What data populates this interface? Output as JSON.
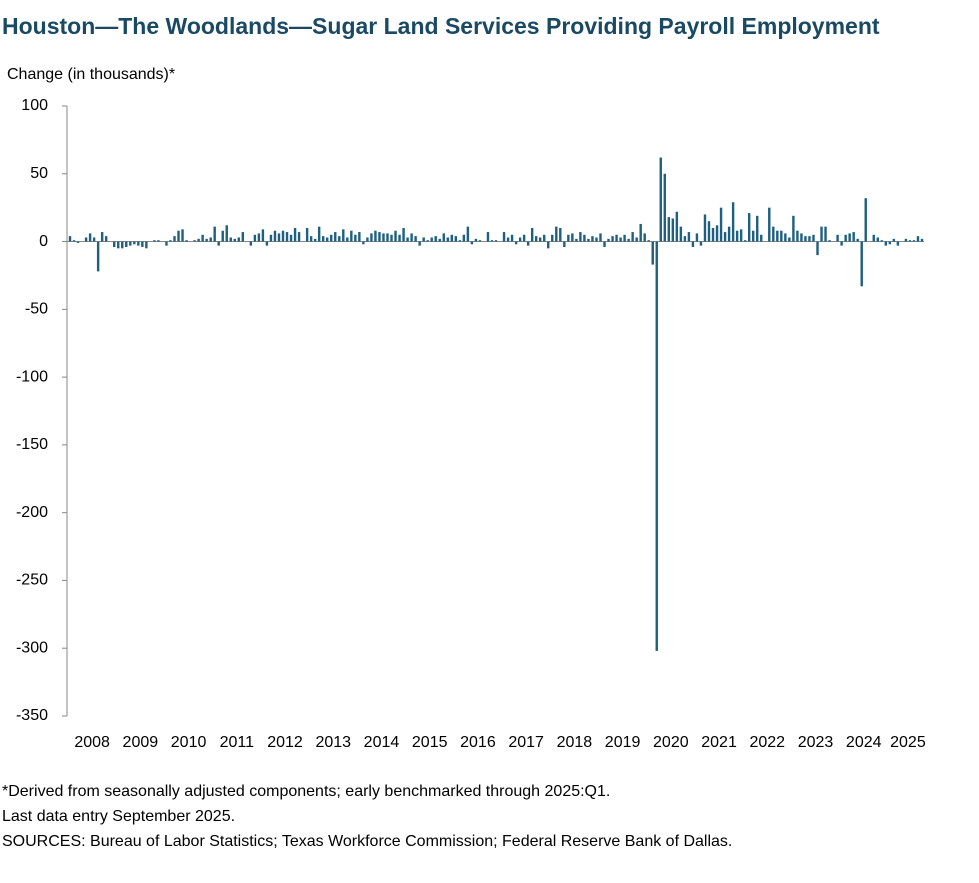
{
  "chart_data": {
    "type": "bar",
    "title": "Houston—The Woodlands—Sugar Land Services Providing Payroll Employment",
    "y_label": "Change (in thousands)*",
    "notes": [
      "*Derived from seasonally adjusted components; early benchmarked through 2025:Q1.",
      "Last data entry September 2025.",
      "SOURCES: Bureau of Labor Statistics; Texas Workforce Commission; Federal Reserve Bank of Dallas."
    ],
    "color": "#1f5f7f",
    "ylim": [
      -350,
      100
    ],
    "yticks": [
      -350,
      -300,
      -250,
      -200,
      -150,
      -100,
      -50,
      0,
      50,
      100
    ],
    "categories": [
      null,
      null,
      null,
      null,
      null,
      null,
      "2008",
      null,
      null,
      null,
      null,
      null,
      null,
      null,
      null,
      null,
      null,
      null,
      "2009",
      null,
      null,
      null,
      null,
      null,
      null,
      null,
      null,
      null,
      null,
      null,
      "2010",
      null,
      null,
      null,
      null,
      null,
      null,
      null,
      null,
      null,
      null,
      null,
      "2011",
      null,
      null,
      null,
      null,
      null,
      null,
      null,
      null,
      null,
      null,
      null,
      "2012",
      null,
      null,
      null,
      null,
      null,
      null,
      null,
      null,
      null,
      null,
      null,
      "2013",
      null,
      null,
      null,
      null,
      null,
      null,
      null,
      null,
      null,
      null,
      null,
      "2014",
      null,
      null,
      null,
      null,
      null,
      null,
      null,
      null,
      null,
      null,
      null,
      "2015",
      null,
      null,
      null,
      null,
      null,
      null,
      null,
      null,
      null,
      null,
      null,
      "2016",
      null,
      null,
      null,
      null,
      null,
      null,
      null,
      null,
      null,
      null,
      null,
      "2017",
      null,
      null,
      null,
      null,
      null,
      null,
      null,
      null,
      null,
      null,
      null,
      "2018",
      null,
      null,
      null,
      null,
      null,
      null,
      null,
      null,
      null,
      null,
      null,
      "2019",
      null,
      null,
      null,
      null,
      null,
      null,
      null,
      null,
      null,
      null,
      null,
      "2020",
      null,
      null,
      null,
      null,
      null,
      null,
      null,
      null,
      null,
      null,
      null,
      "2021",
      null,
      null,
      null,
      null,
      null,
      null,
      null,
      null,
      null,
      null,
      null,
      "2022",
      null,
      null,
      null,
      null,
      null,
      null,
      null,
      null,
      null,
      null,
      null,
      "2023",
      null,
      null,
      null,
      null,
      null,
      null,
      null,
      null,
      null,
      null,
      null,
      "2024",
      null,
      null,
      null,
      null,
      null,
      null,
      null,
      null,
      null,
      null,
      "2025",
      null,
      null,
      null
    ],
    "values": [
      4,
      1,
      -1,
      0,
      3,
      6,
      3,
      -22,
      7,
      4,
      0,
      -4,
      -5,
      -5,
      -4,
      -3,
      -2,
      -3,
      -4,
      -5,
      0,
      1,
      1,
      0,
      -3,
      1,
      4,
      8,
      9,
      1,
      0,
      1,
      2,
      5,
      2,
      3,
      11,
      -3,
      8,
      12,
      3,
      2,
      3,
      7,
      0,
      -3,
      5,
      6,
      9,
      -3,
      5,
      8,
      6,
      8,
      7,
      5,
      10,
      7,
      0,
      10,
      4,
      2,
      11,
      4,
      3,
      5,
      7,
      4,
      9,
      3,
      8,
      5,
      7,
      -2,
      3,
      6,
      8,
      7,
      6,
      6,
      5,
      8,
      5,
      10,
      3,
      6,
      4,
      -3,
      3,
      1,
      3,
      4,
      2,
      6,
      3,
      5,
      4,
      1,
      5,
      11,
      -2,
      2,
      1,
      0,
      7,
      1,
      1,
      0,
      7,
      3,
      5,
      -2,
      3,
      5,
      -3,
      10,
      4,
      3,
      5,
      -5,
      5,
      11,
      10,
      -4,
      5,
      6,
      2,
      7,
      5,
      2,
      4,
      3,
      6,
      -4,
      2,
      4,
      5,
      3,
      5,
      2,
      7,
      3,
      13,
      6,
      1,
      -17,
      -302,
      62,
      50,
      18,
      17,
      22,
      11,
      4,
      7,
      -4,
      6,
      -3,
      20,
      15,
      10,
      12,
      25,
      7,
      11,
      29,
      8,
      9,
      1,
      21,
      8,
      19,
      5,
      0,
      25,
      11,
      8,
      8,
      6,
      3,
      19,
      8,
      6,
      4,
      4,
      5,
      -10,
      11,
      11,
      1,
      0,
      5,
      -3,
      5,
      6,
      7,
      2,
      -33,
      32,
      0,
      5,
      3,
      1,
      -3,
      -2,
      2,
      -3,
      0,
      2,
      1,
      1,
      4,
      2
    ]
  }
}
